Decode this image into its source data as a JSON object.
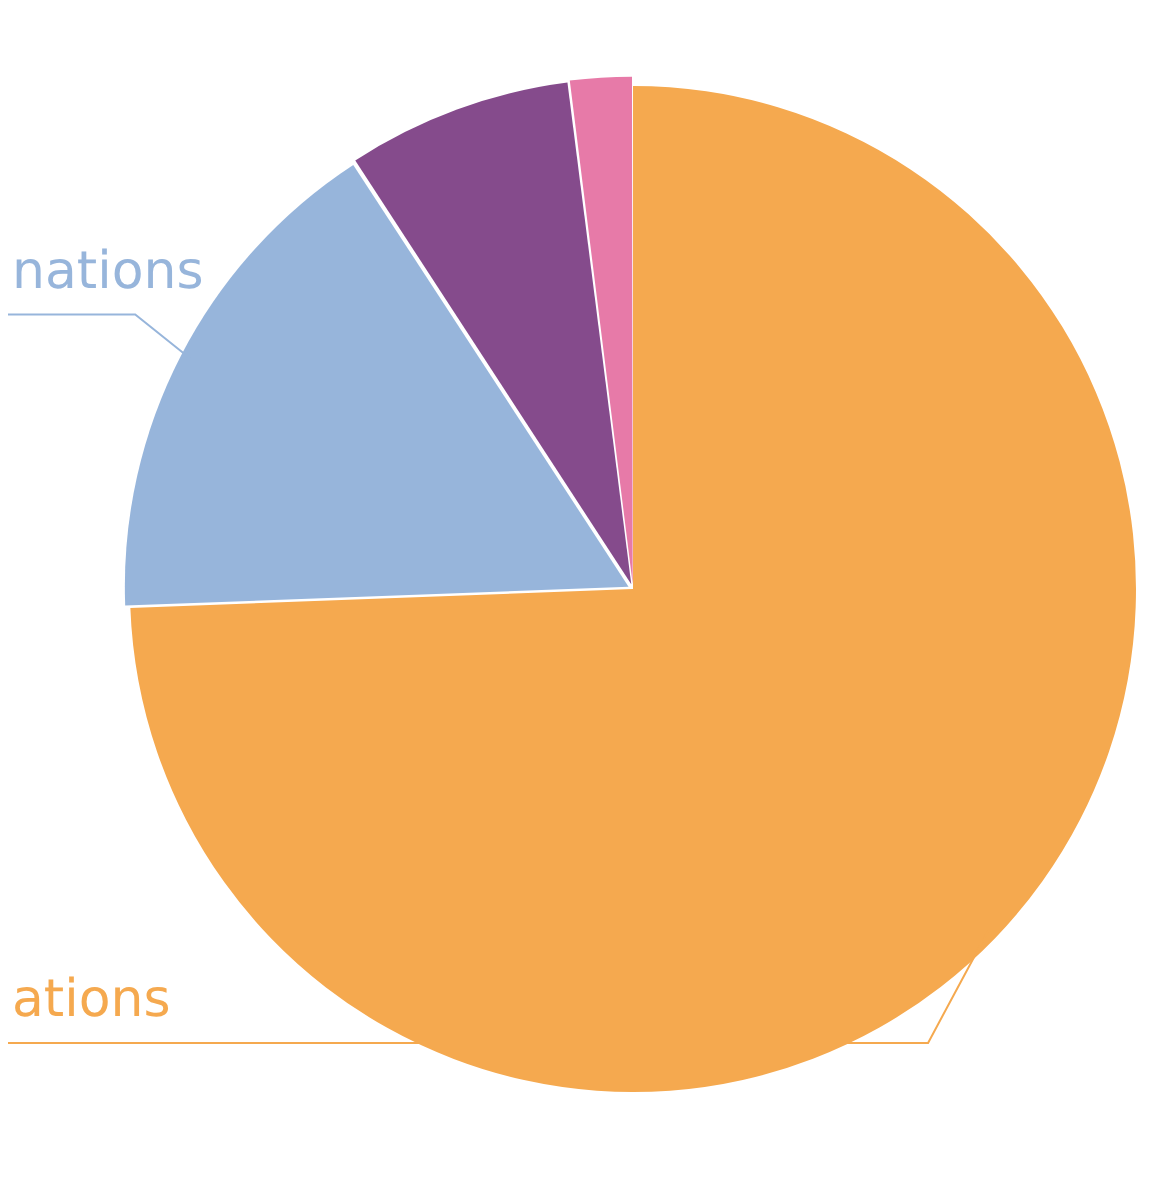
{
  "chart_data": {
    "type": "pie",
    "categories": [
      "ations",
      "nations",
      null,
      null
    ],
    "values": [
      74.4,
      16.4,
      7.2,
      2.0
    ],
    "colors": [
      "#f5a94f",
      "#97b5db",
      "#854b8c",
      "#e77aa8"
    ],
    "legend": false
  }
}
